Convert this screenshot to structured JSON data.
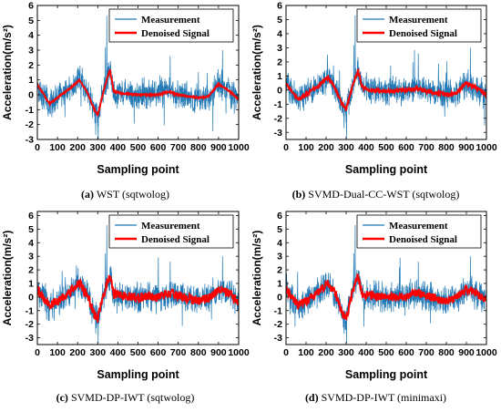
{
  "chart_data": [
    {
      "type": "line",
      "caption_letter": "(a)",
      "caption_text": " WST (sqtwolog)",
      "xlabel": "Sampling point",
      "ylabel": "Acceleration(m/s²)",
      "xlim": [
        0,
        1000
      ],
      "ylim": [
        -3,
        6
      ],
      "xticks": [
        "0",
        "100",
        "200",
        "300",
        "400",
        "500",
        "600",
        "700",
        "800",
        "900",
        "1000"
      ],
      "yticks": [
        "-3",
        "-2",
        "-1",
        "0",
        "1",
        "2",
        "3",
        "4",
        "5",
        "6"
      ],
      "legend_position": "top-right",
      "legend": [
        "Measurement",
        "Denoised Signal"
      ],
      "series": [
        {
          "name": "Measurement",
          "color": "#1f77b4",
          "envelope_amplitude": 0.8
        },
        {
          "name": "Denoised Signal",
          "color": "#ff0000",
          "noise_amplitude": 0.05,
          "x": [
            0,
            60,
            100,
            160,
            210,
            250,
            280,
            300,
            330,
            360,
            380,
            420,
            500,
            600,
            650,
            700,
            750,
            800,
            850,
            880,
            900,
            940,
            1000
          ],
          "y": [
            0.7,
            -0.6,
            -0.2,
            0.4,
            1.0,
            0.1,
            -0.9,
            -1.4,
            0.3,
            1.7,
            0.2,
            0.1,
            0.0,
            0.0,
            0.2,
            0.0,
            -0.1,
            -0.2,
            -0.1,
            0.4,
            0.7,
            0.4,
            -0.3
          ]
        }
      ]
    },
    {
      "type": "line",
      "caption_letter": "(b)",
      "caption_text": " SVMD-Dual-CC-WST (sqtwolog)",
      "xlabel": "Sampling point",
      "ylabel": "Acceleration(m/s²)",
      "xlim": [
        0,
        1000
      ],
      "ylim": [
        -3.5,
        6
      ],
      "xticks": [
        "0",
        "100",
        "200",
        "300",
        "400",
        "500",
        "600",
        "700",
        "800",
        "900",
        "1000"
      ],
      "yticks": [
        "-3",
        "-2",
        "-1",
        "0",
        "1",
        "2",
        "3",
        "4",
        "5",
        "6"
      ],
      "legend_position": "top-right",
      "legend": [
        "Measurement",
        "Denoised Signal"
      ],
      "series": [
        {
          "name": "Measurement",
          "color": "#1f77b4",
          "envelope_amplitude": 0.8
        },
        {
          "name": "Denoised Signal",
          "color": "#ff0000",
          "noise_amplitude": 0.12,
          "x": [
            0,
            60,
            100,
            160,
            210,
            250,
            280,
            300,
            330,
            360,
            380,
            420,
            500,
            600,
            650,
            700,
            750,
            800,
            850,
            880,
            900,
            940,
            1000
          ],
          "y": [
            0.5,
            -0.7,
            -0.3,
            0.3,
            0.9,
            0.0,
            -1.0,
            -1.4,
            0.2,
            1.4,
            0.2,
            0.0,
            -0.1,
            0.0,
            0.1,
            -0.1,
            -0.2,
            -0.3,
            -0.2,
            0.2,
            0.5,
            0.2,
            -0.3
          ]
        }
      ]
    },
    {
      "type": "line",
      "caption_letter": "(c)",
      "caption_text": " SVMD-DP-IWT (sqtwolog)",
      "xlabel": "Sampling point",
      "ylabel": "Acceleration(m/s²)",
      "xlim": [
        0,
        1000
      ],
      "ylim": [
        -3.5,
        6.3
      ],
      "xticks": [
        "0",
        "100",
        "200",
        "300",
        "400",
        "500",
        "600",
        "700",
        "800",
        "900",
        "1000"
      ],
      "yticks": [
        "-3",
        "-2",
        "-1",
        "0",
        "1",
        "2",
        "3",
        "4",
        "5",
        "6"
      ],
      "legend_position": "top-right",
      "legend": [
        "Measurement",
        "Denoised Signal"
      ],
      "series": [
        {
          "name": "Measurement",
          "color": "#1f77b4",
          "envelope_amplitude": 0.85
        },
        {
          "name": "Denoised Signal",
          "color": "#ff0000",
          "noise_amplitude": 0.35,
          "x": [
            0,
            60,
            100,
            160,
            210,
            250,
            280,
            300,
            330,
            360,
            380,
            420,
            500,
            600,
            650,
            700,
            750,
            800,
            850,
            880,
            900,
            940,
            1000
          ],
          "y": [
            0.6,
            -0.6,
            -0.3,
            0.4,
            1.0,
            0.1,
            -1.2,
            -1.6,
            0.3,
            1.6,
            0.2,
            0.1,
            0.0,
            0.0,
            0.3,
            0.1,
            -0.1,
            -0.3,
            -0.1,
            0.3,
            0.6,
            0.3,
            -0.3
          ]
        }
      ]
    },
    {
      "type": "line",
      "caption_letter": "(d)",
      "caption_text": " SVMD-DP-IWT (minimaxi)",
      "xlabel": "Sampling point",
      "ylabel": "Acceleration(m/s²)",
      "xlim": [
        0,
        1000
      ],
      "ylim": [
        -3.5,
        6.3
      ],
      "xticks": [
        "0",
        "100",
        "200",
        "300",
        "400",
        "500",
        "600",
        "700",
        "800",
        "900",
        "1000"
      ],
      "yticks": [
        "-3",
        "-2",
        "-1",
        "0",
        "1",
        "2",
        "3",
        "4",
        "5",
        "6"
      ],
      "legend_position": "top-right",
      "legend": [
        "Measurement",
        "Denoised Signal"
      ],
      "series": [
        {
          "name": "Measurement",
          "color": "#1f77b4",
          "envelope_amplitude": 0.85
        },
        {
          "name": "Denoised Signal",
          "color": "#ff0000",
          "noise_amplitude": 0.3,
          "x": [
            0,
            60,
            100,
            160,
            210,
            250,
            280,
            300,
            330,
            360,
            380,
            420,
            500,
            600,
            650,
            700,
            750,
            800,
            850,
            880,
            900,
            940,
            1000
          ],
          "y": [
            0.6,
            -0.6,
            -0.3,
            0.4,
            1.0,
            0.1,
            -1.2,
            -1.6,
            0.3,
            1.6,
            0.2,
            0.1,
            0.0,
            0.0,
            0.3,
            0.1,
            -0.1,
            -0.3,
            -0.1,
            0.3,
            0.6,
            0.3,
            -0.3
          ]
        }
      ]
    }
  ]
}
